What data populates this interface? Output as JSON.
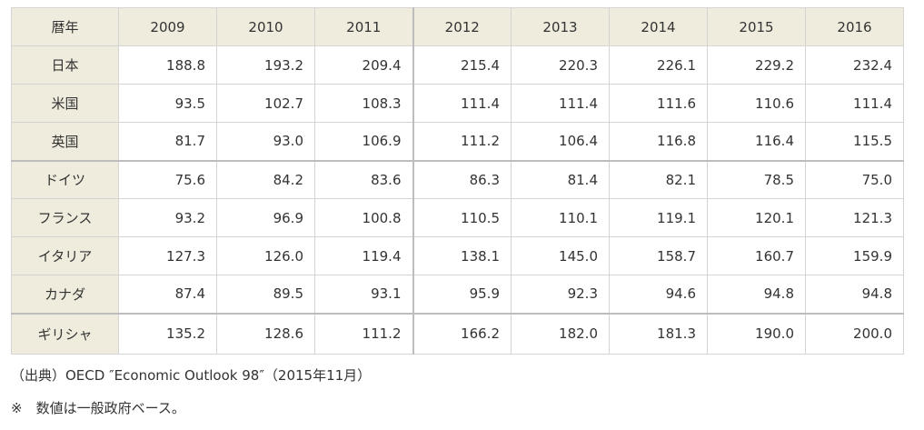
{
  "table": {
    "header": [
      "暦年",
      "2009",
      "2010",
      "2011",
      "2012",
      "2013",
      "2014",
      "2015",
      "2016"
    ],
    "rows": [
      [
        "日本",
        "188.8",
        "193.2",
        "209.4",
        "215.4",
        "220.3",
        "226.1",
        "229.2",
        "232.4"
      ],
      [
        "米国",
        "93.5",
        "102.7",
        "108.3",
        "111.4",
        "111.4",
        "111.6",
        "110.6",
        "111.4"
      ],
      [
        "英国",
        "81.7",
        "93.0",
        "106.9",
        "111.2",
        "106.4",
        "116.8",
        "116.4",
        "115.5"
      ],
      [
        "ドイツ",
        "75.6",
        "84.2",
        "83.6",
        "86.3",
        "81.4",
        "82.1",
        "78.5",
        "75.0"
      ],
      [
        "フランス",
        "93.2",
        "96.9",
        "100.8",
        "110.5",
        "110.1",
        "119.1",
        "120.1",
        "121.3"
      ],
      [
        "イタリア",
        "127.3",
        "126.0",
        "119.4",
        "138.1",
        "145.0",
        "158.7",
        "160.7",
        "159.9"
      ],
      [
        "カナダ",
        "87.4",
        "89.5",
        "93.1",
        "95.9",
        "92.3",
        "94.6",
        "94.8",
        "94.8"
      ],
      [
        "ギリシャ",
        "135.2",
        "128.6",
        "111.2",
        "166.2",
        "182.0",
        "181.3",
        "190.0",
        "200.0"
      ]
    ]
  },
  "notes": [
    "（出典）OECD ″Economic Outlook 98″（2015年11月）",
    "※　数値は一般政府ベース。"
  ]
}
